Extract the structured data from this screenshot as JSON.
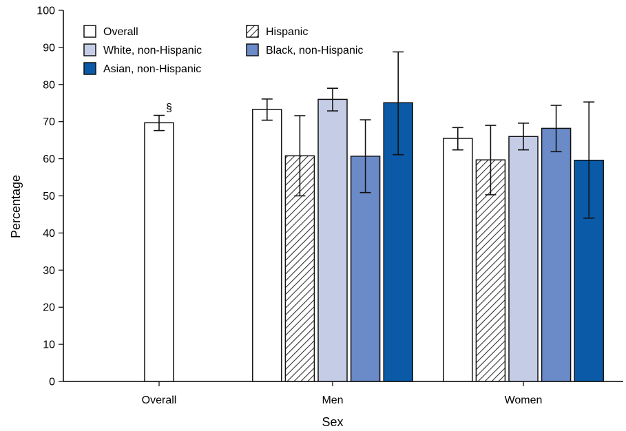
{
  "chart_data": {
    "type": "bar",
    "xlabel": "Sex",
    "ylabel": "Percentage",
    "ylim": [
      0,
      100
    ],
    "yticks": [
      0,
      10,
      20,
      30,
      40,
      50,
      60,
      70,
      80,
      90,
      100
    ],
    "categories": [
      "Overall",
      "Men",
      "Women"
    ],
    "legend_position": "top-left",
    "series": [
      {
        "name": "Overall",
        "color": "#ffffff",
        "pattern": "none",
        "values": [
          69.7,
          73.3,
          65.5
        ],
        "ci": [
          [
            67.6,
            71.7
          ],
          [
            70.4,
            76.1
          ],
          [
            62.4,
            68.4
          ]
        ]
      },
      {
        "name": "Hispanic",
        "color": "#ffffff",
        "pattern": "hatch",
        "values": [
          null,
          60.8,
          59.7
        ],
        "ci": [
          null,
          [
            50.0,
            71.6
          ],
          [
            50.3,
            69.0
          ]
        ]
      },
      {
        "name": "White, non-Hispanic",
        "color": "#c5cde6",
        "pattern": "none",
        "values": [
          null,
          76.0,
          66.0
        ],
        "ci": [
          null,
          [
            72.9,
            79.0
          ],
          [
            62.4,
            69.6
          ]
        ]
      },
      {
        "name": "Black, non-Hispanic",
        "color": "#6a8ac8",
        "pattern": "none",
        "values": [
          null,
          60.7,
          68.2
        ],
        "ci": [
          null,
          [
            50.9,
            70.5
          ],
          [
            61.9,
            74.4
          ]
        ]
      },
      {
        "name": "Asian, non-Hispanic",
        "color": "#0a5aa8",
        "pattern": "none",
        "values": [
          null,
          75.1,
          59.6
        ],
        "ci": [
          null,
          [
            61.1,
            88.8
          ],
          [
            44.0,
            75.3
          ]
        ]
      }
    ],
    "annotations": [
      {
        "text": "§",
        "category": "Overall",
        "series": "Overall"
      }
    ]
  }
}
